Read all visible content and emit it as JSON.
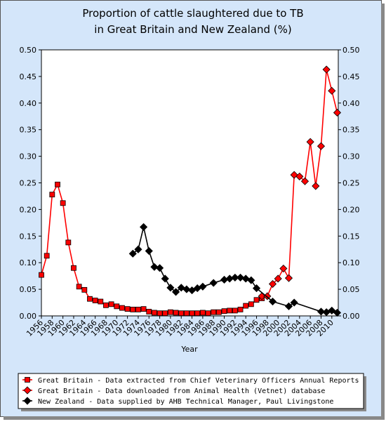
{
  "chart_data": {
    "type": "line",
    "title": "Proportion of cattle slaughtered due to TB",
    "subtitle": "in Great Britain and New Zealand (%)",
    "x_label": "Year",
    "xlim": [
      1956,
      2011.2
    ],
    "xticks": [
      1956,
      1958,
      1960,
      1962,
      1964,
      1966,
      1968,
      1970,
      1972,
      1974,
      1976,
      1978,
      1980,
      1982,
      1984,
      1986,
      1988,
      1990,
      1992,
      1994,
      1996,
      1998,
      2000,
      2002,
      2004,
      2006,
      2008,
      2010
    ],
    "ylim": [
      0,
      0.5
    ],
    "yticks": [
      {
        "value": 0,
        "label": "0.00"
      },
      {
        "value": 0.05,
        "label": "0.05"
      },
      {
        "value": 0.1,
        "label": "0.10"
      },
      {
        "value": 0.15,
        "label": "0.15"
      },
      {
        "value": 0.2,
        "label": "0.20"
      },
      {
        "value": 0.25,
        "label": "0.25"
      },
      {
        "value": 0.3,
        "label": "0.30"
      },
      {
        "value": 0.35,
        "label": "0.35"
      },
      {
        "value": 0.4,
        "label": "0.40"
      },
      {
        "value": 0.45,
        "label": "0.45"
      },
      {
        "value": 0.5,
        "label": "0.50"
      }
    ],
    "y2lim": [
      0,
      0.5
    ],
    "y2ticks": [
      {
        "value": 0,
        "label": "0.00"
      },
      {
        "value": 0.05,
        "label": "0.05"
      },
      {
        "value": 0.1,
        "label": "0.10"
      },
      {
        "value": 0.15,
        "label": "0.15"
      },
      {
        "value": 0.2,
        "label": "0.20"
      },
      {
        "value": 0.25,
        "label": "0.25"
      },
      {
        "value": 0.3,
        "label": "0.30"
      },
      {
        "value": 0.35,
        "label": "0.35"
      },
      {
        "value": 0.4,
        "label": "0.40"
      },
      {
        "value": 0.45,
        "label": "0.45"
      },
      {
        "value": 0.5,
        "label": "0.50"
      }
    ],
    "series": [
      {
        "name": "Great Britain - Data extracted from Chief Veterinary Officers Annual Reports",
        "color": "#ff0000",
        "marker": "square",
        "x": [
          1956,
          1957,
          1958,
          1959,
          1960,
          1961,
          1962,
          1963,
          1964,
          1965,
          1966,
          1967,
          1968,
          1969,
          1970,
          1971,
          1972,
          1973,
          1974,
          1975,
          1976,
          1977,
          1978,
          1979,
          1980,
          1981,
          1982,
          1983,
          1984,
          1985,
          1986,
          1987,
          1988,
          1989,
          1990,
          1991,
          1992,
          1993,
          1994,
          1995,
          1996,
          1997
        ],
        "values": [
          0.077,
          0.113,
          0.228,
          0.247,
          0.212,
          0.138,
          0.09,
          0.055,
          0.049,
          0.032,
          0.029,
          0.027,
          0.02,
          0.022,
          0.018,
          0.015,
          0.013,
          0.012,
          0.012,
          0.013,
          0.008,
          0.006,
          0.005,
          0.005,
          0.007,
          0.006,
          0.005,
          0.005,
          0.005,
          0.005,
          0.006,
          0.005,
          0.007,
          0.007,
          0.009,
          0.01,
          0.01,
          0.012,
          0.019,
          0.022,
          0.03,
          0.033
        ]
      },
      {
        "name": "Great Britain - Data downloaded from Animal Health (Vetnet) database",
        "color": "#ff0000",
        "marker": "diamond",
        "x": [
          1997,
          1998,
          1999,
          2000,
          2001,
          2002,
          2003,
          2004,
          2005,
          2006,
          2007,
          2008,
          2009,
          2010,
          2011
        ],
        "values": [
          0.037,
          0.037,
          0.06,
          0.07,
          0.089,
          0.071,
          0.265,
          0.262,
          0.253,
          0.327,
          0.244,
          0.319,
          0.463,
          0.423,
          0.382
        ]
      },
      {
        "name": "New Zealand - Data supplied by AHB Technical Manager, Paul Livingstone",
        "color": "#000000",
        "marker": "diamond",
        "x": [
          1973,
          1974,
          1975,
          1976,
          1977,
          1978,
          1979,
          1980,
          1981,
          1982,
          1983,
          1984,
          1985,
          1986,
          1988,
          1990,
          1991,
          1992,
          1993,
          1994,
          1995,
          1996,
          1999,
          2002,
          2003,
          2008,
          2009,
          2010,
          2011
        ],
        "values": [
          0.117,
          0.125,
          0.167,
          0.122,
          0.092,
          0.09,
          0.07,
          0.053,
          0.045,
          0.053,
          0.05,
          0.048,
          0.052,
          0.055,
          0.062,
          0.068,
          0.07,
          0.072,
          0.072,
          0.07,
          0.067,
          0.052,
          0.027,
          0.018,
          0.025,
          0.008,
          0.007,
          0.01,
          0.006
        ]
      }
    ]
  }
}
